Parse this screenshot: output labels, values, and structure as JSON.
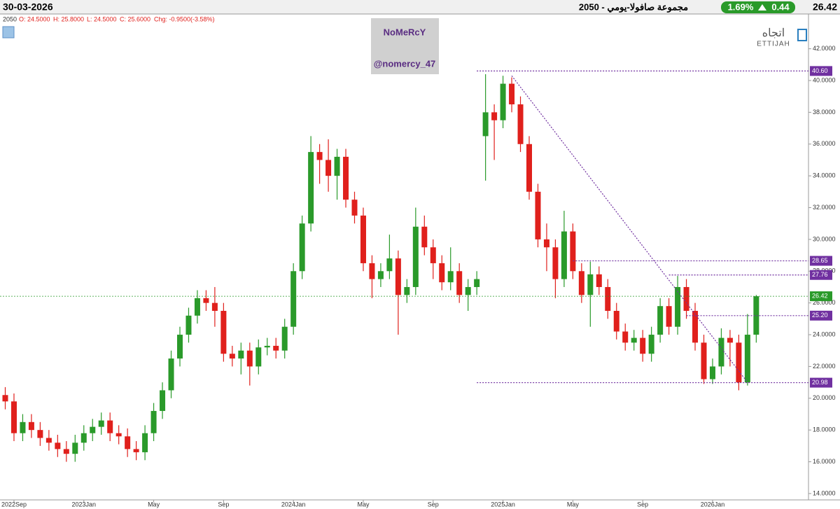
{
  "header": {
    "date": "30-03-2026",
    "title": "مجموعة صافولا-يومي - 2050",
    "change_pct": "1.69%",
    "change": "0.44",
    "price": "26.42"
  },
  "info": {
    "symbol": "2050",
    "open": "O: 24.5000",
    "high": "H: 25.8000",
    "low": "L: 24.5000",
    "close": "C: 25.6000",
    "chg": "Chg: -0.9500(-3.58%)"
  },
  "watermark": {
    "name": "NoMeRcY",
    "handle": "@nomercy_47"
  },
  "logo": {
    "arabic": "اتجاه",
    "latin": "ETTIJAH"
  },
  "chart_data": {
    "type": "candlestick",
    "categories": [
      null,
      "2022Sep",
      null,
      null,
      null,
      null,
      null,
      null,
      null,
      "2023Jan",
      null,
      null,
      null,
      null,
      null,
      null,
      null,
      "May",
      null,
      null,
      null,
      null,
      null,
      null,
      null,
      "Sep",
      null,
      null,
      null,
      null,
      null,
      null,
      null,
      "2024Jan",
      null,
      null,
      null,
      null,
      null,
      null,
      null,
      "May",
      null,
      null,
      null,
      null,
      null,
      null,
      null,
      "Sep",
      null,
      null,
      null,
      null,
      null,
      null,
      null,
      "2025Jan",
      null,
      null,
      null,
      null,
      null,
      null,
      null,
      "May",
      null,
      null,
      null,
      null,
      null,
      null,
      null,
      "Sep",
      null,
      null,
      null,
      null,
      null,
      null,
      null,
      "2026Jan",
      null,
      null,
      null,
      null,
      null
    ],
    "open": [
      20.2,
      19.8,
      17.8,
      18.5,
      18.0,
      17.5,
      17.2,
      16.8,
      16.5,
      17.2,
      17.8,
      18.2,
      18.6,
      17.8,
      17.6,
      16.8,
      16.6,
      17.8,
      19.2,
      20.5,
      22.5,
      24.0,
      25.2,
      26.3,
      26.0,
      25.5,
      22.8,
      22.5,
      23.0,
      22.0,
      23.2,
      23.3,
      23.0,
      24.5,
      28.0,
      31.0,
      35.5,
      35.0,
      34.0,
      35.2,
      32.5,
      31.5,
      28.5,
      27.5,
      28.0,
      28.8,
      26.5,
      27.0,
      30.8,
      29.5,
      28.5,
      27.3,
      28.0,
      26.5,
      27.0,
      36.5,
      38.0,
      37.5,
      39.8,
      38.5,
      36.0,
      33.0,
      30.0,
      29.5,
      27.5,
      30.5,
      28.0,
      26.5,
      27.8,
      27.0,
      25.5,
      24.2,
      23.5,
      23.8,
      22.8,
      24.0,
      25.8,
      24.5,
      27.0,
      25.5,
      23.5,
      21.2,
      22.0,
      23.8,
      23.5,
      21.0,
      24.0
    ],
    "high": [
      20.7,
      20.3,
      19.0,
      19.0,
      18.5,
      18.0,
      17.7,
      17.3,
      17.7,
      18.3,
      18.7,
      19.1,
      19.1,
      18.3,
      18.1,
      17.3,
      18.3,
      19.7,
      21.0,
      23.0,
      24.5,
      25.7,
      26.8,
      26.8,
      27.0,
      26.0,
      23.3,
      23.5,
      23.5,
      23.7,
      23.8,
      23.8,
      25.0,
      28.5,
      31.5,
      36.5,
      36.0,
      36.3,
      35.7,
      35.7,
      33.0,
      32.0,
      29.0,
      28.5,
      30.3,
      29.3,
      27.5,
      32.0,
      31.5,
      30.0,
      29.0,
      29.5,
      28.5,
      27.5,
      28.0,
      40.4,
      38.5,
      40.3,
      40.2,
      39.0,
      36.5,
      33.5,
      31.0,
      30.0,
      31.8,
      31.0,
      28.5,
      28.6,
      28.3,
      27.5,
      26.0,
      24.7,
      24.3,
      24.3,
      24.5,
      26.3,
      26.3,
      27.7,
      27.5,
      26.0,
      24.0,
      22.5,
      24.4,
      24.3,
      24.0,
      25.3,
      26.5
    ],
    "low": [
      19.3,
      17.3,
      17.3,
      17.5,
      17.0,
      16.7,
      16.3,
      16.0,
      16.0,
      16.7,
      17.3,
      17.7,
      17.3,
      17.1,
      16.3,
      16.1,
      16.1,
      17.3,
      18.7,
      20.0,
      22.0,
      23.5,
      24.7,
      25.5,
      24.5,
      22.3,
      22.0,
      21.5,
      20.8,
      21.5,
      22.7,
      22.5,
      22.5,
      24.0,
      27.5,
      30.5,
      33.5,
      33.0,
      32.5,
      32.0,
      31.0,
      28.0,
      26.3,
      27.0,
      27.5,
      24.0,
      26.0,
      26.5,
      29.0,
      27.5,
      26.8,
      26.8,
      26.0,
      25.5,
      26.5,
      33.7,
      35.0,
      37.0,
      38.0,
      35.5,
      32.5,
      29.5,
      28.0,
      26.3,
      27.0,
      27.5,
      26.0,
      24.5,
      26.5,
      25.0,
      23.7,
      23.0,
      23.0,
      22.3,
      22.3,
      23.5,
      24.0,
      24.0,
      25.0,
      23.0,
      20.9,
      20.9,
      21.5,
      22.0,
      20.5,
      20.8,
      23.5
    ],
    "close": [
      19.8,
      17.8,
      18.5,
      18.0,
      17.5,
      17.2,
      16.8,
      16.5,
      17.2,
      17.8,
      18.2,
      18.6,
      17.8,
      17.6,
      16.8,
      16.6,
      17.8,
      19.2,
      20.5,
      22.5,
      24.0,
      25.2,
      26.3,
      26.0,
      25.5,
      22.8,
      22.5,
      23.0,
      22.0,
      23.2,
      23.3,
      23.0,
      24.5,
      28.0,
      31.0,
      35.5,
      35.0,
      34.0,
      35.2,
      32.5,
      31.5,
      28.5,
      27.5,
      28.0,
      28.8,
      26.5,
      27.0,
      30.8,
      29.5,
      28.5,
      27.3,
      28.0,
      26.5,
      27.0,
      27.5,
      38.0,
      37.5,
      39.8,
      38.5,
      36.0,
      33.0,
      30.0,
      29.5,
      27.5,
      30.5,
      28.0,
      26.5,
      27.8,
      27.0,
      25.5,
      24.2,
      23.5,
      23.8,
      22.8,
      24.0,
      25.8,
      24.5,
      27.0,
      25.5,
      23.5,
      21.2,
      22.0,
      23.8,
      23.5,
      21.0,
      24.0,
      26.42
    ],
    "up_color": "#2a9a2a",
    "down_color": "#e0201c",
    "ylim": [
      13.6,
      44.1
    ],
    "yticks": [
      {
        "value": 14,
        "label": "14.0000"
      },
      {
        "value": 16,
        "label": "16.0000"
      },
      {
        "value": 18,
        "label": "18.0000"
      },
      {
        "value": 20,
        "label": "20.0000"
      },
      {
        "value": 22,
        "label": "22.0000"
      },
      {
        "value": 24,
        "label": "24.0000"
      },
      {
        "value": 26,
        "label": "26.0000"
      },
      {
        "value": 28,
        "label": "28.0000"
      },
      {
        "value": 30,
        "label": "30.0000"
      },
      {
        "value": 32,
        "label": "32.0000"
      },
      {
        "value": 34,
        "label": "34.0000"
      },
      {
        "value": 36,
        "label": "36.0000"
      },
      {
        "value": 38,
        "label": "38.0000"
      },
      {
        "value": 40,
        "label": "40.0000"
      },
      {
        "value": 42,
        "label": "42.0000"
      }
    ],
    "levels": [
      {
        "value": 40.6,
        "label": "40.60",
        "from_index": 54
      },
      {
        "value": 28.65,
        "label": "28.65",
        "from_index": 65
      },
      {
        "value": 27.76,
        "label": "27.76",
        "from_index": 76
      },
      {
        "value": 25.2,
        "label": "25.20",
        "from_index": 78
      },
      {
        "value": 20.98,
        "label": "20.98",
        "from_index": 54
      }
    ],
    "level_color": "#7030a0",
    "last_price": {
      "value": 26.42,
      "label": "26.42",
      "color": "#2a9a2a"
    },
    "trendline": {
      "from_index": 58,
      "from_value": 40.3,
      "to_index": 85,
      "to_value": 21.0
    }
  }
}
